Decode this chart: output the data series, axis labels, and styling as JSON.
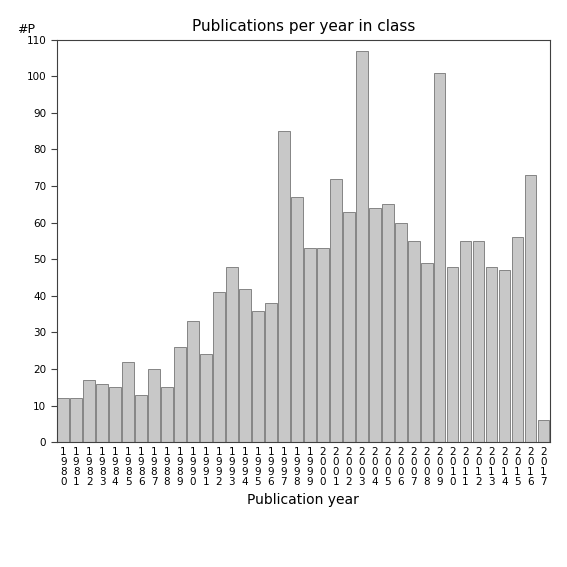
{
  "title": "Publications per year in class",
  "xlabel": "Publication year",
  "ylabel": "#P",
  "ylim": [
    0,
    110
  ],
  "yticks": [
    0,
    10,
    20,
    30,
    40,
    50,
    60,
    70,
    80,
    90,
    100,
    110
  ],
  "years": [
    "1980",
    "1981",
    "1982",
    "1983",
    "1984",
    "1985",
    "1986",
    "1987",
    "1988",
    "1989",
    "1990",
    "1991",
    "1992",
    "1993",
    "1994",
    "1995",
    "1996",
    "1997",
    "1998",
    "1999",
    "2000",
    "2001",
    "2002",
    "2003",
    "2004",
    "2005",
    "2006",
    "2007",
    "2008",
    "2009",
    "2010",
    "2011",
    "2012",
    "2013",
    "2014",
    "2015",
    "2016",
    "2017"
  ],
  "values": [
    12,
    12,
    17,
    16,
    15,
    22,
    13,
    20,
    15,
    26,
    33,
    24,
    41,
    48,
    42,
    36,
    38,
    85,
    67,
    53,
    53,
    72,
    63,
    107,
    64,
    65,
    60,
    55,
    49,
    101,
    48,
    55,
    55,
    48,
    47,
    56,
    73,
    6
  ],
  "bar_color": "#c8c8c8",
  "bar_edge_color": "#606060",
  "background_color": "#ffffff",
  "title_fontsize": 11,
  "label_fontsize": 10,
  "tick_fontsize": 7.5,
  "ylabel_fontsize": 9
}
